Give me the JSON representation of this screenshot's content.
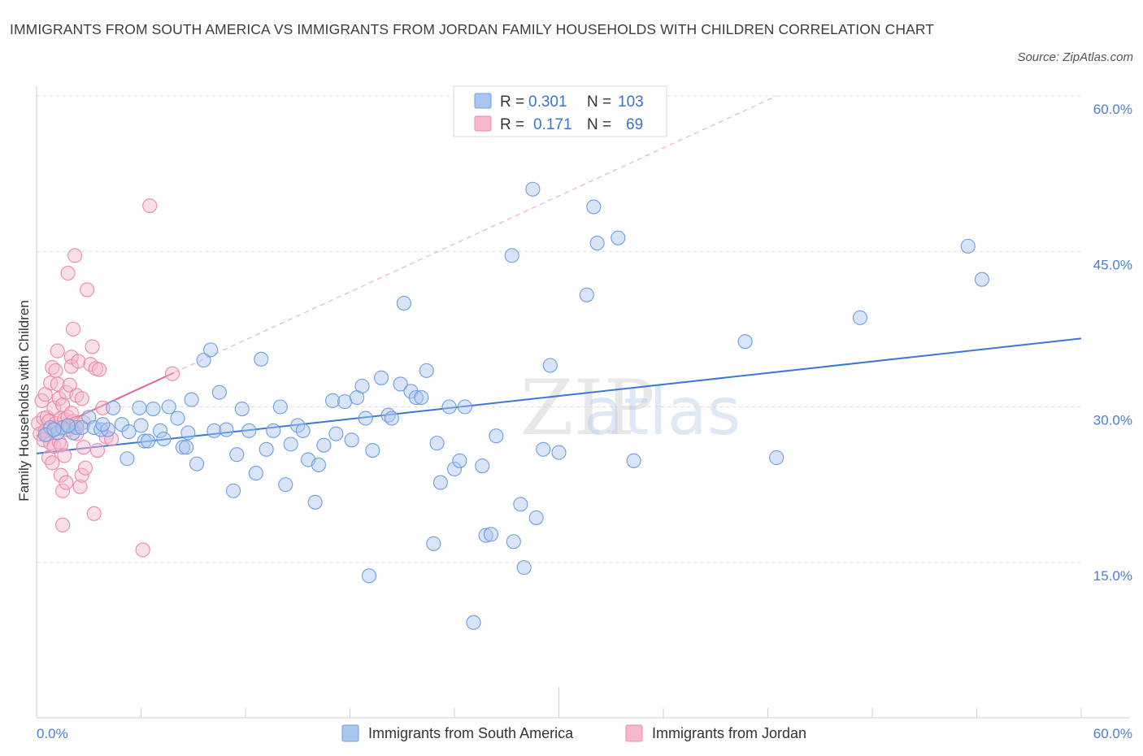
{
  "title": "IMMIGRANTS FROM SOUTH AMERICA VS IMMIGRANTS FROM JORDAN FAMILY HOUSEHOLDS WITH CHILDREN CORRELATION CHART",
  "source": "Source: ZipAtlas.com",
  "watermark": {
    "zip": "ZIP",
    "atlas": "atlas"
  },
  "legend": {
    "r_label": "R =",
    "n_label": "N =",
    "rows": [
      {
        "r": "0.301",
        "n": "103",
        "color": "#a9c6f0",
        "stroke": "#6f9de0"
      },
      {
        "r": "0.171",
        "n": "69",
        "color": "#f6b8cb",
        "stroke": "#e88aa8"
      }
    ]
  },
  "chart_data": {
    "type": "scatter",
    "title": "IMMIGRANTS FROM SOUTH AMERICA VS IMMIGRANTS FROM JORDAN FAMILY HOUSEHOLDS WITH CHILDREN CORRELATION CHART",
    "xlabel": "",
    "ylabel": "Family Households with Children",
    "xlim": [
      0,
      60
    ],
    "ylim": [
      0,
      60
    ],
    "x_tick_labels": [
      "0.0%",
      "60.0%"
    ],
    "y_tick_labels": [
      "15.0%",
      "30.0%",
      "45.0%",
      "60.0%"
    ],
    "y_ticks": [
      15,
      30,
      45,
      60
    ],
    "grid": true,
    "legend_position": "top-center",
    "series": [
      {
        "name": "Immigrants from South America",
        "color": "#6f9de0",
        "fill": "#a9c6f0",
        "trend": {
          "x": [
            0,
            60
          ],
          "y": [
            25.5,
            36.6
          ],
          "color": "#3b78d6"
        },
        "points": [
          [
            0.8,
            28
          ],
          [
            1.2,
            27.5
          ],
          [
            1.5,
            28
          ],
          [
            2.1,
            27.5
          ],
          [
            2.3,
            28
          ],
          [
            2.6,
            28
          ],
          [
            3,
            29
          ],
          [
            3.3,
            28
          ],
          [
            3.7,
            27.8
          ],
          [
            4.1,
            27.8
          ],
          [
            4.4,
            29.9
          ],
          [
            4.9,
            28.3
          ],
          [
            5.2,
            25
          ],
          [
            5.3,
            27.6
          ],
          [
            5.9,
            29.9
          ],
          [
            6.2,
            26.7
          ],
          [
            6.4,
            26.7
          ],
          [
            6.7,
            29.8
          ],
          [
            7.1,
            27.7
          ],
          [
            7.3,
            26.9
          ],
          [
            7.6,
            30
          ],
          [
            8.1,
            28.9
          ],
          [
            8.4,
            26.1
          ],
          [
            8.6,
            26.1
          ],
          [
            8.9,
            30.7
          ],
          [
            9.2,
            24.5
          ],
          [
            9.6,
            34.5
          ],
          [
            10,
            35.5
          ],
          [
            10.2,
            27.7
          ],
          [
            10.5,
            31.4
          ],
          [
            10.9,
            27.8
          ],
          [
            11.3,
            21.9
          ],
          [
            11.5,
            25.4
          ],
          [
            11.8,
            29.8
          ],
          [
            12.2,
            27.7
          ],
          [
            12.6,
            23.6
          ],
          [
            12.9,
            34.6
          ],
          [
            13.2,
            25.9
          ],
          [
            13.6,
            27.7
          ],
          [
            14,
            30
          ],
          [
            14.3,
            22.5
          ],
          [
            14.6,
            26.4
          ],
          [
            15,
            28.2
          ],
          [
            15.3,
            27.7
          ],
          [
            15.6,
            24.9
          ],
          [
            16,
            20.8
          ],
          [
            16.2,
            24.4
          ],
          [
            16.5,
            26.3
          ],
          [
            17,
            30.6
          ],
          [
            17.2,
            27.4
          ],
          [
            17.7,
            30.5
          ],
          [
            18.1,
            26.8
          ],
          [
            18.4,
            30.9
          ],
          [
            18.7,
            32
          ],
          [
            18.9,
            28.9
          ],
          [
            19.1,
            13.7
          ],
          [
            19.3,
            25.8
          ],
          [
            19.8,
            32.8
          ],
          [
            20.2,
            29.2
          ],
          [
            20.4,
            28.9
          ],
          [
            20.9,
            32.2
          ],
          [
            21.1,
            40
          ],
          [
            21.5,
            31.5
          ],
          [
            21.8,
            30.9
          ],
          [
            22.1,
            30.9
          ],
          [
            22.4,
            33.5
          ],
          [
            22.8,
            16.8
          ],
          [
            23,
            26.5
          ],
          [
            23.2,
            22.7
          ],
          [
            23.7,
            30
          ],
          [
            24,
            24
          ],
          [
            24.3,
            24.8
          ],
          [
            24.6,
            30
          ],
          [
            25.1,
            9.2
          ],
          [
            25.6,
            24.3
          ],
          [
            25.8,
            17.6
          ],
          [
            26.1,
            17.7
          ],
          [
            26.4,
            27.2
          ],
          [
            27.3,
            44.6
          ],
          [
            27.4,
            17
          ],
          [
            27.8,
            20.6
          ],
          [
            28,
            14.5
          ],
          [
            28.5,
            51
          ],
          [
            28.7,
            19.3
          ],
          [
            29.1,
            25.9
          ],
          [
            29.5,
            34
          ],
          [
            30,
            25.6
          ],
          [
            31.6,
            40.8
          ],
          [
            32,
            49.3
          ],
          [
            32.2,
            45.8
          ],
          [
            33.4,
            46.3
          ],
          [
            34.3,
            24.8
          ],
          [
            40.7,
            36.3
          ],
          [
            42.5,
            25.1
          ],
          [
            47.3,
            38.6
          ],
          [
            53.5,
            45.5
          ],
          [
            54.3,
            42.3
          ],
          [
            0.5,
            27.3
          ],
          [
            1,
            27.8
          ],
          [
            1.8,
            28.2
          ],
          [
            3.8,
            28.3
          ],
          [
            6,
            28.2
          ],
          [
            8.7,
            27.5
          ]
        ]
      },
      {
        "name": "Immigrants from Jordan",
        "color": "#e88aa8",
        "fill": "#f6b8cb",
        "trend": {
          "x": [
            0,
            7.9
          ],
          "y": [
            27.2,
            33.3
          ],
          "color": "#e0679a"
        },
        "trend_ext": {
          "x": [
            0,
            60
          ],
          "y": [
            27.2,
            73.5
          ],
          "color": "#eaa2bb"
        },
        "points": [
          [
            0.1,
            28.4
          ],
          [
            0.2,
            27.4
          ],
          [
            0.3,
            30.6
          ],
          [
            0.4,
            26.8
          ],
          [
            0.4,
            28.9
          ],
          [
            0.5,
            27.7
          ],
          [
            0.5,
            31.2
          ],
          [
            0.6,
            29
          ],
          [
            0.6,
            27.3
          ],
          [
            0.7,
            25.1
          ],
          [
            0.7,
            28.6
          ],
          [
            0.8,
            26.5
          ],
          [
            0.8,
            32.3
          ],
          [
            0.9,
            24.6
          ],
          [
            0.9,
            33.8
          ],
          [
            1,
            27.9
          ],
          [
            1,
            29.9
          ],
          [
            1,
            26.2
          ],
          [
            1.1,
            33.5
          ],
          [
            1.1,
            28.4
          ],
          [
            1.2,
            35.4
          ],
          [
            1.2,
            28
          ],
          [
            1.2,
            32.2
          ],
          [
            1.3,
            26.6
          ],
          [
            1.3,
            30.8
          ],
          [
            1.4,
            26.3
          ],
          [
            1.4,
            23.4
          ],
          [
            1.4,
            28.9
          ],
          [
            1.5,
            21.9
          ],
          [
            1.5,
            30.2
          ],
          [
            1.5,
            18.6
          ],
          [
            1.6,
            28.8
          ],
          [
            1.6,
            25.3
          ],
          [
            1.7,
            22.7
          ],
          [
            1.7,
            31.4
          ],
          [
            1.8,
            29
          ],
          [
            1.8,
            42.9
          ],
          [
            1.8,
            27.8
          ],
          [
            1.9,
            32.1
          ],
          [
            1.9,
            28.1
          ],
          [
            2,
            34.8
          ],
          [
            2.1,
            28.6
          ],
          [
            2,
            33.9
          ],
          [
            2,
            29.4
          ],
          [
            2.1,
            37.5
          ],
          [
            2.2,
            44.6
          ],
          [
            2.3,
            31.1
          ],
          [
            2.3,
            27.4
          ],
          [
            2.3,
            28.4
          ],
          [
            2.4,
            34.4
          ],
          [
            2.5,
            22.3
          ],
          [
            2.6,
            23.4
          ],
          [
            2.6,
            30.8
          ],
          [
            2.7,
            28.5
          ],
          [
            2.7,
            26.1
          ],
          [
            2.8,
            24.1
          ],
          [
            2.9,
            41.3
          ],
          [
            3.1,
            34.1
          ],
          [
            3.2,
            35.8
          ],
          [
            3.3,
            19.7
          ],
          [
            3.4,
            33.7
          ],
          [
            3.5,
            25.8
          ],
          [
            3.6,
            33.6
          ],
          [
            3.8,
            29.9
          ],
          [
            4,
            27.1
          ],
          [
            6.1,
            16.2
          ],
          [
            6.5,
            49.4
          ],
          [
            7.8,
            33.2
          ],
          [
            4.3,
            26.9
          ]
        ]
      }
    ]
  }
}
